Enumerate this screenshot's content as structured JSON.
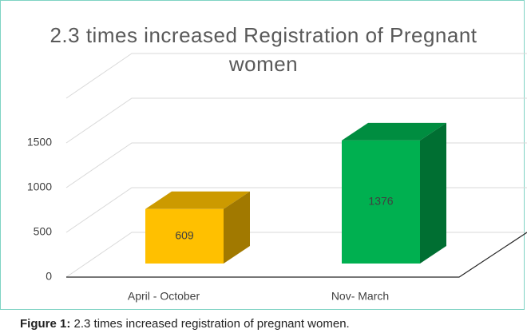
{
  "chart_data": {
    "type": "bar3d",
    "title": "2.3 times increased Registration of Pregnant women",
    "categories": [
      "April - October",
      "Nov- March"
    ],
    "values": [
      609,
      1376
    ],
    "colors": [
      "#ffc000",
      "#00b050"
    ],
    "ylim": [
      0,
      2000
    ],
    "yticks": [
      0,
      500,
      1000,
      1500
    ],
    "grid": true
  },
  "caption": {
    "label": "Figure 1:",
    "text": "2.3 times increased registration of pregnant women."
  }
}
